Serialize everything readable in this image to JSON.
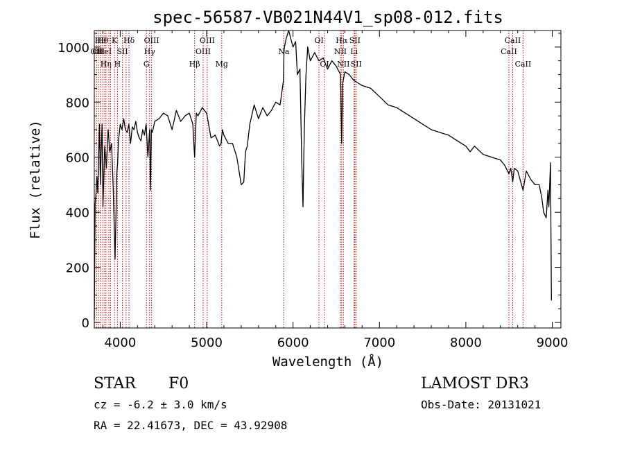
{
  "chart_data": {
    "type": "line",
    "title": "spec-56587-VB021N44V1_sp08-012.fits",
    "xlabel": "Wavelength (Å)",
    "ylabel": "Flux (relative)",
    "xlim": [
      3700,
      9100
    ],
    "ylim": [
      -20,
      1060
    ],
    "x_ticks": [
      4000,
      5000,
      6000,
      7000,
      8000,
      9000
    ],
    "x_tick_labels": [
      "4000",
      "5000",
      "6000",
      "7000",
      "8000",
      "9000"
    ],
    "y_ticks": [
      0,
      200,
      400,
      600,
      800,
      1000
    ],
    "y_tick_labels": [
      "0",
      "200",
      "400",
      "600",
      "800",
      "1000"
    ],
    "series": [
      {
        "name": "flux",
        "x": [
          3700,
          3710,
          3720,
          3730,
          3740,
          3750,
          3760,
          3770,
          3780,
          3790,
          3800,
          3820,
          3840,
          3860,
          3880,
          3900,
          3920,
          3940,
          3950,
          3960,
          3970,
          3980,
          4000,
          4020,
          4040,
          4060,
          4080,
          4100,
          4120,
          4140,
          4160,
          4180,
          4200,
          4220,
          4240,
          4260,
          4280,
          4300,
          4320,
          4340,
          4350,
          4360,
          4370,
          4380,
          4400,
          4450,
          4500,
          4550,
          4600,
          4650,
          4700,
          4750,
          4800,
          4840,
          4861,
          4880,
          4900,
          4950,
          5000,
          5050,
          5100,
          5150,
          5167,
          5183,
          5200,
          5250,
          5300,
          5350,
          5400,
          5430,
          5450,
          5470,
          5500,
          5550,
          5600,
          5650,
          5700,
          5750,
          5800,
          5850,
          5890,
          5895,
          5900,
          5920,
          5950,
          6000,
          6030,
          6050,
          6080,
          6100,
          6115,
          6130,
          6150,
          6170,
          6200,
          6250,
          6300,
          6350,
          6400,
          6450,
          6500,
          6550,
          6563,
          6575,
          6600,
          6650,
          6700,
          6750,
          6800,
          6900,
          7000,
          7100,
          7200,
          7300,
          7400,
          7500,
          7600,
          7700,
          7800,
          7900,
          8000,
          8050,
          8100,
          8200,
          8300,
          8400,
          8450,
          8498,
          8520,
          8542,
          8560,
          8600,
          8662,
          8700,
          8750,
          8800,
          8850,
          8880,
          8900,
          8930,
          8950,
          8960,
          8980,
          8990
        ],
        "values": [
          10,
          430,
          470,
          530,
          470,
          600,
          720,
          500,
          630,
          720,
          420,
          640,
          560,
          700,
          620,
          650,
          480,
          230,
          380,
          540,
          580,
          660,
          720,
          700,
          740,
          700,
          690,
          720,
          650,
          710,
          700,
          730,
          690,
          670,
          660,
          700,
          680,
          720,
          600,
          700,
          480,
          700,
          690,
          700,
          730,
          740,
          760,
          750,
          700,
          770,
          730,
          750,
          760,
          720,
          600,
          760,
          750,
          780,
          760,
          670,
          680,
          640,
          650,
          700,
          680,
          650,
          650,
          600,
          500,
          510,
          620,
          640,
          720,
          790,
          740,
          780,
          750,
          770,
          800,
          790,
          880,
          980,
          1000,
          1030,
          1060,
          1000,
          1020,
          900,
          920,
          600,
          420,
          700,
          900,
          1000,
          950,
          980,
          950,
          960,
          920,
          950,
          930,
          900,
          650,
          870,
          910,
          900,
          880,
          870,
          860,
          850,
          820,
          790,
          780,
          760,
          740,
          720,
          700,
          690,
          680,
          660,
          640,
          620,
          640,
          610,
          600,
          590,
          570,
          540,
          560,
          510,
          560,
          550,
          480,
          550,
          520,
          500,
          500,
          450,
          400,
          380,
          480,
          420,
          580,
          80
        ]
      }
    ],
    "lines": [
      {
        "wl": 3727,
        "label": "OII",
        "row": 2
      },
      {
        "wl": 3750,
        "label": "OII",
        "row": 2
      },
      {
        "wl": 3770,
        "label": "Hθ",
        "row": 1
      },
      {
        "wl": 3798,
        "label": "Hθ",
        "row": 1
      },
      {
        "wl": 3820,
        "label": "HeI",
        "row": 2
      },
      {
        "wl": 3835,
        "label": "Hη",
        "row": 3
      },
      {
        "wl": 3869,
        "label": "",
        "row": 0
      },
      {
        "wl": 3889,
        "label": "",
        "row": 0
      },
      {
        "wl": 3934,
        "label": "K",
        "row": 1
      },
      {
        "wl": 3968,
        "label": "H",
        "row": 3
      },
      {
        "wl": 4026,
        "label": "SII",
        "row": 2
      },
      {
        "wl": 4068,
        "label": "",
        "row": 0
      },
      {
        "wl": 4102,
        "label": "Hδ",
        "row": 1
      },
      {
        "wl": 4304,
        "label": "G",
        "row": 3
      },
      {
        "wl": 4340,
        "label": "Hγ",
        "row": 2
      },
      {
        "wl": 4363,
        "label": "OIII",
        "row": 1
      },
      {
        "wl": 4861,
        "label": "Hβ",
        "row": 3
      },
      {
        "wl": 4959,
        "label": "OIII",
        "row": 2
      },
      {
        "wl": 5007,
        "label": "OIII",
        "row": 1
      },
      {
        "wl": 5175,
        "label": "Mg",
        "row": 3
      },
      {
        "wl": 5893,
        "label": "Na",
        "row": 2
      },
      {
        "wl": 6300,
        "label": "OI",
        "row": 1
      },
      {
        "wl": 6364,
        "label": "OI",
        "row": 3
      },
      {
        "wl": 6548,
        "label": "NII",
        "row": 2
      },
      {
        "wl": 6563,
        "label": "Hα",
        "row": 1
      },
      {
        "wl": 6583,
        "label": "NII",
        "row": 3
      },
      {
        "wl": 6707,
        "label": "Li",
        "row": 2
      },
      {
        "wl": 6716,
        "label": "SII",
        "row": 1
      },
      {
        "wl": 6731,
        "label": "SII",
        "row": 3
      },
      {
        "wl": 8498,
        "label": "CaII",
        "row": 2
      },
      {
        "wl": 8542,
        "label": "CaII",
        "row": 1
      },
      {
        "wl": 8662,
        "label": "CaII",
        "row": 3
      }
    ]
  },
  "info": {
    "object_class": "STAR",
    "subclass": "F0",
    "survey": "LAMOST DR3",
    "cz": "cz = -6.2 ± 3.0 km/s",
    "obs_date": "Obs-Date: 20131021",
    "coords": "RA =  22.41673, DEC =  43.92908"
  }
}
